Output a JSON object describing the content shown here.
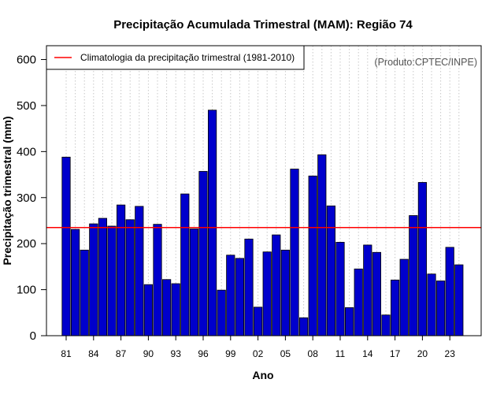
{
  "chart_data": {
    "type": "bar",
    "title": "Precipitação Acumulada Trimestral (MAM): Região 74",
    "xlabel": "Ano",
    "ylabel": "Precipitação trimestral (mm)",
    "credit": "(Produto:CPTEC/INPE)",
    "ylim": [
      0,
      630
    ],
    "yticks": [
      0,
      100,
      200,
      300,
      400,
      500,
      600
    ],
    "grid": "vertical dotted",
    "legend_position": "top-left",
    "categories": [
      "81",
      "82",
      "83",
      "84",
      "85",
      "86",
      "87",
      "88",
      "89",
      "90",
      "91",
      "92",
      "93",
      "94",
      "95",
      "96",
      "97",
      "98",
      "99",
      "00",
      "01",
      "02",
      "03",
      "04",
      "05",
      "06",
      "07",
      "08",
      "09",
      "10",
      "11",
      "12",
      "13",
      "14",
      "15",
      "16",
      "17",
      "18",
      "19",
      "20",
      "21",
      "22",
      "23",
      "24"
    ],
    "xtick_labels": [
      "81",
      "84",
      "87",
      "90",
      "93",
      "96",
      "99",
      "02",
      "05",
      "08",
      "11",
      "14",
      "17",
      "20",
      "23"
    ],
    "series": [
      {
        "name": "Precipitação trimestral",
        "color": "#0000cc",
        "values": [
          388,
          231,
          186,
          243,
          255,
          238,
          284,
          252,
          281,
          111,
          242,
          122,
          113,
          308,
          232,
          357,
          490,
          99,
          175,
          168,
          210,
          62,
          182,
          219,
          186,
          362,
          39,
          347,
          393,
          282,
          203,
          61,
          145,
          197,
          181,
          45,
          121,
          166,
          261,
          333,
          134,
          119,
          192,
          154
        ]
      }
    ],
    "reference_line": {
      "label": "Climatologia da precipitação trimestral (1981-2010)",
      "value": 235,
      "color": "#ff0000"
    }
  }
}
